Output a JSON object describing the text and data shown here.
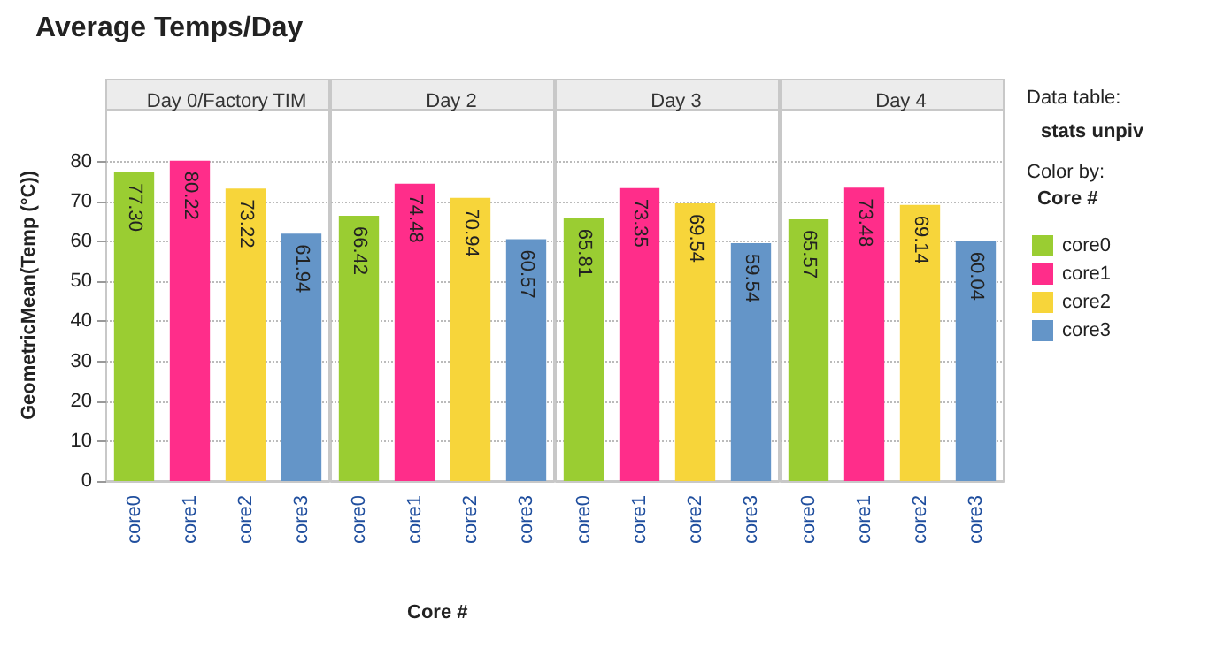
{
  "chart_data": [
    {
      "type": "bar",
      "title": "Day 0/Factory TIM",
      "annotations": [
        "Average Temps/Day"
      ],
      "ylabel": "GeometricMean(Temp (°C))",
      "categories": [
        "core0",
        "core1",
        "core2",
        "core3"
      ],
      "series": [
        {
          "color": "#9acd32",
          "values": [
            77.3,
            null,
            null,
            null
          ],
          "value_labels": [
            "77.30",
            null,
            null,
            null
          ]
        },
        {
          "color": "#ff2d8a",
          "values": [
            null,
            80.22,
            null,
            null
          ],
          "value_labels": [
            null,
            "80.22",
            null,
            null
          ]
        },
        {
          "color": "#f7d53a",
          "values": [
            null,
            null,
            73.22,
            null
          ],
          "value_labels": [
            null,
            null,
            "73.22",
            null
          ]
        },
        {
          "color": "#6495c8",
          "values": [
            null,
            null,
            null,
            61.94
          ],
          "value_labels": [
            null,
            null,
            null,
            "61.94"
          ]
        }
      ],
      "ylim": [
        0,
        93
      ],
      "yticks": [
        0,
        10,
        20,
        30,
        40,
        50,
        60,
        70,
        80
      ],
      "grid": "y"
    },
    {
      "type": "bar",
      "title": "Day 2",
      "xlabel": "Core #",
      "categories": [
        "core0",
        "core1",
        "core2",
        "core3"
      ],
      "series": [
        {
          "color": "#9acd32",
          "values": [
            66.42,
            null,
            null,
            null
          ],
          "value_labels": [
            "66.42",
            null,
            null,
            null
          ]
        },
        {
          "color": "#ff2d8a",
          "values": [
            null,
            74.48,
            null,
            null
          ],
          "value_labels": [
            null,
            "74.48",
            null,
            null
          ]
        },
        {
          "color": "#f7d53a",
          "values": [
            null,
            null,
            70.94,
            null
          ],
          "value_labels": [
            null,
            null,
            "70.94",
            null
          ]
        },
        {
          "color": "#6495c8",
          "values": [
            null,
            null,
            null,
            60.57
          ],
          "value_labels": [
            null,
            null,
            null,
            "60.57"
          ]
        }
      ],
      "ylim": [
        0,
        93
      ],
      "yticks": [
        0,
        10,
        20,
        30,
        40,
        50,
        60,
        70,
        80
      ],
      "grid": "y",
      "tick_labels": "x"
    },
    {
      "type": "bar",
      "title": "Day 3",
      "categories": [
        "core0",
        "core1",
        "core2",
        "core3"
      ],
      "series": [
        {
          "color": "#9acd32",
          "values": [
            65.81,
            null,
            null,
            null
          ],
          "value_labels": [
            "65.81",
            null,
            null,
            null
          ]
        },
        {
          "color": "#ff2d8a",
          "values": [
            null,
            73.35,
            null,
            null
          ],
          "value_labels": [
            null,
            "73.35",
            null,
            null
          ]
        },
        {
          "color": "#f7d53a",
          "values": [
            null,
            null,
            69.54,
            null
          ],
          "value_labels": [
            null,
            null,
            "69.54",
            null
          ]
        },
        {
          "color": "#6495c8",
          "values": [
            null,
            null,
            null,
            59.54
          ],
          "value_labels": [
            null,
            null,
            null,
            "59.54"
          ]
        }
      ],
      "ylim": [
        0,
        93
      ],
      "yticks": [
        0,
        10,
        20,
        30,
        40,
        50,
        60,
        70,
        80
      ],
      "grid": "y",
      "tick_labels": "x"
    },
    {
      "type": "bar",
      "title": "Day 4",
      "annotations": [
        "Data table:",
        "stats unpiv",
        "Color by:"
      ],
      "legend_title": "Core #",
      "legend": "right",
      "categories": [
        "core0",
        "core1",
        "core2",
        "core3"
      ],
      "series": [
        {
          "name": "core0",
          "color": "#9acd32",
          "values": [
            65.57,
            null,
            null,
            null
          ],
          "value_labels": [
            "65.57",
            null,
            null,
            null
          ]
        },
        {
          "name": "core1",
          "color": "#ff2d8a",
          "values": [
            null,
            73.48,
            null,
            null
          ],
          "value_labels": [
            null,
            "73.48",
            null,
            null
          ]
        },
        {
          "name": "core2",
          "color": "#f7d53a",
          "values": [
            null,
            null,
            69.14,
            null
          ],
          "value_labels": [
            null,
            null,
            "69.14",
            null
          ]
        },
        {
          "name": "core3",
          "color": "#6495c8",
          "values": [
            null,
            null,
            null,
            60.04
          ],
          "value_labels": [
            null,
            null,
            null,
            "60.04"
          ]
        }
      ],
      "ylim": [
        0,
        93
      ],
      "yticks": [
        0,
        10,
        20,
        30,
        40,
        50,
        60,
        70,
        80
      ],
      "grid": "y",
      "tick_labels": "x"
    }
  ]
}
